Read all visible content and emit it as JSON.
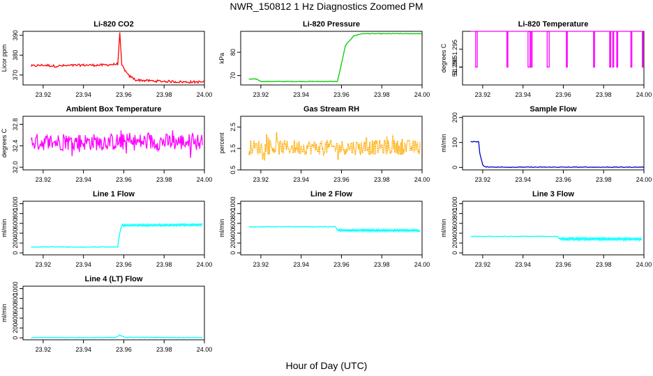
{
  "figure": {
    "title": "NWR_150812  1 Hz Diagnostics Zoomed PM",
    "xlabel": "Hour of Day (UTC)"
  },
  "chart_data": [
    {
      "id": "co2",
      "type": "line",
      "title": "Li-820 CO2",
      "ylabel": "Licor ppm",
      "color": "#ff0000",
      "xlim": [
        23.91,
        24.0
      ],
      "xticks": [
        "23.92",
        "23.94",
        "23.96",
        "23.98",
        "24.00"
      ],
      "ylim": [
        365,
        392
      ],
      "yticks": [
        370,
        380,
        390
      ],
      "x": [
        23.914,
        23.92,
        23.926,
        23.94,
        23.95,
        23.957,
        23.958,
        23.959,
        23.962,
        23.966,
        23.975,
        23.99,
        24.0
      ],
      "y": [
        374.5,
        375,
        374.5,
        375,
        375,
        375.5,
        391,
        375,
        370,
        367.5,
        367,
        366.5,
        366.5
      ]
    },
    {
      "id": "pressure",
      "type": "line",
      "title": "Li-820 Pressure",
      "ylabel": "kPa",
      "color": "#00cc00",
      "xlim": [
        23.91,
        24.0
      ],
      "xticks": [
        "23.92",
        "23.94",
        "23.96",
        "23.98",
        "24.00"
      ],
      "ylim": [
        66,
        89
      ],
      "yticks": [
        70,
        80
      ],
      "x": [
        23.914,
        23.918,
        23.92,
        23.94,
        23.958,
        23.96,
        23.962,
        23.966,
        23.97,
        23.98,
        24.0
      ],
      "y": [
        68.5,
        68.5,
        67.5,
        67.5,
        67.5,
        75,
        83,
        87,
        88,
        88,
        88
      ]
    },
    {
      "id": "temperature",
      "type": "line",
      "title": "Li-820 Temperature",
      "ylabel": "degrees C",
      "color": "#ff00ff",
      "xlim": [
        23.91,
        24.0
      ],
      "xticks": [
        "23.92",
        "23.94",
        "23.96",
        "23.98",
        "24.00"
      ],
      "ylim": [
        51.285,
        51.3
      ],
      "yticks": [
        51.29,
        51.295,
        51.29
      ],
      "ytick_labels": [
        "51.290",
        "51.295",
        "51.29"
      ],
      "high": 51.3,
      "low": 51.29,
      "drops": [
        23.9165,
        23.9173,
        23.932,
        23.9325,
        23.9425,
        23.9435,
        23.944,
        23.9445,
        23.952,
        23.953,
        23.9615,
        23.962,
        23.975,
        23.9755,
        23.983,
        23.9835,
        23.9845,
        23.985,
        23.9865,
        23.987,
        23.9935,
        23.994,
        23.9992,
        23.9995
      ]
    },
    {
      "id": "ambient",
      "type": "noise",
      "title": "Ambient Box Temperature",
      "ylabel": "degrees C",
      "color": "#ff00ff",
      "xlim": [
        23.91,
        24.0
      ],
      "xticks": [
        "23.92",
        "23.94",
        "23.96",
        "23.98",
        "24.00"
      ],
      "ylim": [
        31.95,
        32.95
      ],
      "yticks": [
        32.0,
        32.4,
        32.8
      ],
      "ytick_labels": [
        "32.0",
        "32.4",
        "32.8"
      ],
      "x_range": [
        23.914,
        23.999
      ],
      "mean": 32.47,
      "spread": 0.16
    },
    {
      "id": "rh",
      "type": "noise",
      "title": "Gas Stream RH",
      "ylabel": "percent",
      "color": "#ffaa00",
      "dotted": true,
      "xlim": [
        23.91,
        24.0
      ],
      "xticks": [
        "23.92",
        "23.94",
        "23.96",
        "23.98",
        "24.00"
      ],
      "ylim": [
        0.5,
        3.0
      ],
      "yticks": [
        0.5,
        1.5,
        2.5
      ],
      "ytick_labels": [
        "0.5",
        "1.5",
        "2.5"
      ],
      "x_range": [
        23.914,
        23.999
      ],
      "mean": 1.55,
      "spread": 0.35
    },
    {
      "id": "sample",
      "type": "line",
      "title": "Sample Flow",
      "ylabel": "ml/min",
      "color": "#0000cc",
      "xlim": [
        23.91,
        24.0
      ],
      "xticks": [
        "23.92",
        "23.94",
        "23.96",
        "23.98",
        "24.00"
      ],
      "ylim": [
        -10,
        205
      ],
      "yticks": [
        0,
        100,
        200
      ],
      "x": [
        23.914,
        23.918,
        23.9185,
        23.92,
        23.921,
        23.93,
        23.96,
        23.99,
        24.0
      ],
      "y": [
        103,
        103,
        60,
        10,
        2,
        1,
        1,
        1,
        1
      ]
    },
    {
      "id": "line1",
      "type": "line",
      "title": "Line 1 Flow",
      "ylabel": "ml/min",
      "color": "#00ffff",
      "xlim": [
        23.91,
        24.0
      ],
      "xticks": [
        "23.92",
        "23.94",
        "23.96",
        "23.98",
        "24.00"
      ],
      "ylim": [
        -40,
        1050
      ],
      "yticks": [
        0,
        200,
        400,
        600,
        800,
        1000
      ],
      "x": [
        23.914,
        23.957,
        23.958,
        23.959,
        23.999
      ],
      "y": [
        120,
        120,
        400,
        560,
        570
      ],
      "band_after": 23.959,
      "band": 25
    },
    {
      "id": "line2",
      "type": "line",
      "title": "Line 2 Flow",
      "ylabel": "ml/min",
      "color": "#00ffff",
      "xlim": [
        23.91,
        24.0
      ],
      "xticks": [
        "23.92",
        "23.94",
        "23.96",
        "23.98",
        "24.00"
      ],
      "ylim": [
        -40,
        1050
      ],
      "yticks": [
        0,
        200,
        400,
        600,
        800,
        1000
      ],
      "x": [
        23.914,
        23.957,
        23.958,
        23.999
      ],
      "y": [
        530,
        530,
        460,
        455
      ],
      "band_after": 23.958,
      "band": 25
    },
    {
      "id": "line3",
      "type": "line",
      "title": "Line 3 Flow",
      "ylabel": "ml/min",
      "color": "#00ffff",
      "xlim": [
        23.91,
        24.0
      ],
      "xticks": [
        "23.92",
        "23.94",
        "23.96",
        "23.98",
        "24.00"
      ],
      "ylim": [
        -40,
        1050
      ],
      "yticks": [
        0,
        200,
        400,
        600,
        800,
        1000
      ],
      "x": [
        23.914,
        23.957,
        23.958,
        23.999
      ],
      "y": [
        335,
        335,
        285,
        280
      ],
      "band_after": 23.958,
      "band": 30
    },
    {
      "id": "line4",
      "type": "line",
      "title": "Line 4 (LT) Flow",
      "ylabel": "ml/min",
      "color": "#00ffff",
      "xlim": [
        23.91,
        24.0
      ],
      "xticks": [
        "23.92",
        "23.94",
        "23.96",
        "23.98",
        "24.00"
      ],
      "ylim": [
        -40,
        1050
      ],
      "yticks": [
        0,
        200,
        400,
        600,
        800,
        1000
      ],
      "x": [
        23.914,
        23.956,
        23.958,
        23.961,
        23.999
      ],
      "y": [
        5,
        5,
        55,
        10,
        5
      ]
    }
  ]
}
